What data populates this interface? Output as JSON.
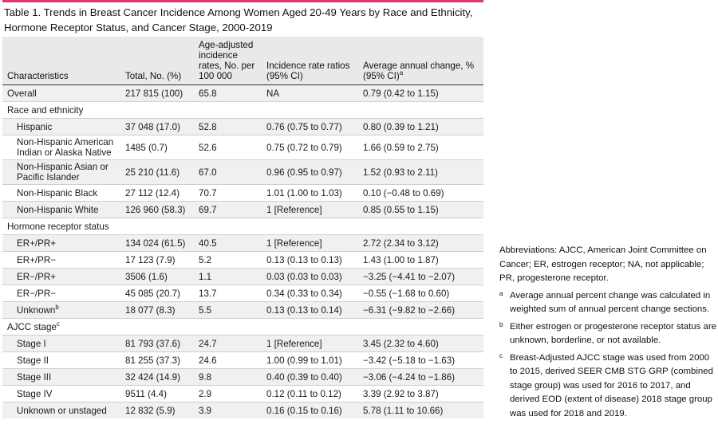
{
  "title": "Table 1. Trends in Breast Cancer Incidence Among Women Aged 20-49 Years by Race and Ethnicity, Hormone Receptor Status, and Cancer Stage, 2000-2019",
  "colors": {
    "accent": "#e8336f",
    "header_bg": "#e9e9e9",
    "stripe_bg": "#f0f0f0"
  },
  "headers": {
    "characteristics": "Characteristics",
    "total": "Total, No. (%)",
    "rates": "Age-adjusted incidence rates, No. per 100 000",
    "irr": "Incidence rate ratios (95% CI)",
    "aac": "Average annual change, % (95% CI)",
    "aac_note": "a"
  },
  "rows": [
    {
      "label": "Overall",
      "total": "217 815 (100)",
      "rate": "65.8",
      "irr": "NA",
      "aac": "0.79 (0.42 to 1.15)"
    },
    {
      "label": "Race and ethnicity"
    },
    {
      "label": "Hispanic",
      "total": "37 048 (17.0)",
      "rate": "52.8",
      "irr": "0.76 (0.75 to 0.77)",
      "aac": "0.80 (0.39 to 1.21)"
    },
    {
      "label": "Non-Hispanic American Indian or Alaska Native",
      "total": "1485 (0.7)",
      "rate": "52.6",
      "irr": "0.75 (0.72 to 0.79)",
      "aac": "1.66 (0.59 to 2.75)"
    },
    {
      "label": "Non-Hispanic Asian or Pacific Islander",
      "total": "25 210 (11.6)",
      "rate": "67.0",
      "irr": "0.96 (0.95 to 0.97)",
      "aac": "1.52 (0.93 to 2.11)"
    },
    {
      "label": "Non-Hispanic Black",
      "total": "27 112 (12.4)",
      "rate": "70.7",
      "irr": "1.01 (1.00 to 1.03)",
      "aac": "0.10 (−0.48 to 0.69)"
    },
    {
      "label": "Non-Hispanic White",
      "total": "126 960 (58.3)",
      "rate": "69.7",
      "irr": "1 [Reference]",
      "aac": "0.85 (0.55 to 1.15)"
    },
    {
      "label": "Hormone receptor status"
    },
    {
      "label": "ER+/PR+",
      "total": "134 024 (61.5)",
      "rate": "40.5",
      "irr": "1 [Reference]",
      "aac": "2.72 (2.34 to 3.12)"
    },
    {
      "label": "ER+/PR−",
      "total": "17 123 (7.9)",
      "rate": "5.2",
      "irr": "0.13 (0.13 to 0.13)",
      "aac": "1.43 (1.00 to 1.87)"
    },
    {
      "label": "ER−/PR+",
      "total": "3506 (1.6)",
      "rate": "1.1",
      "irr": "0.03 (0.03 to 0.03)",
      "aac": "−3.25 (−4.41 to −2.07)"
    },
    {
      "label": "ER−/PR−",
      "total": "45 085 (20.7)",
      "rate": "13.7",
      "irr": "0.34 (0.33 to 0.34)",
      "aac": "−0.55 (−1.68 to 0.60)"
    },
    {
      "label": "Unknown",
      "note": "b",
      "total": "18 077 (8.3)",
      "rate": "5.5",
      "irr": "0.13 (0.13 to 0.14)",
      "aac": "−6.31 (−9.82 to −2.66)"
    },
    {
      "label": "AJCC stage",
      "note": "c"
    },
    {
      "label": "Stage I",
      "total": "81 793 (37.6)",
      "rate": "24.7",
      "irr": "1 [Reference]",
      "aac": "3.45 (2.32 to 4.60)"
    },
    {
      "label": "Stage II",
      "total": "81 255 (37.3)",
      "rate": "24.6",
      "irr": "1.00 (0.99 to 1.01)",
      "aac": "−3.42 (−5.18 to −1.63)"
    },
    {
      "label": "Stage III",
      "total": "32 424 (14.9)",
      "rate": "9.8",
      "irr": "0.40 (0.39 to 0.40)",
      "aac": "−3.06 (−4.24 to −1.86)"
    },
    {
      "label": "Stage IV",
      "total": "9511 (4.4)",
      "rate": "2.9",
      "irr": "0.12 (0.11 to 0.12)",
      "aac": "3.39 (2.92 to 3.87)"
    },
    {
      "label": "Unknown or unstaged",
      "total": "12 832 (5.9)",
      "rate": "3.9",
      "irr": "0.16 (0.15 to 0.16)",
      "aac": "5.78 (1.11 to 10.66)"
    }
  ],
  "notes": {
    "abbreviations": "Abbreviations: AJCC, American Joint Committee on Cancer; ER, estrogen receptor; NA, not applicable; PR, progesterone receptor.",
    "footnotes": [
      {
        "mark": "a",
        "text": "Average annual percent change was calculated in weighted sum of annual percent change sections."
      },
      {
        "mark": "b",
        "text": "Either estrogen or progesterone receptor status are unknown, borderline, or not available."
      },
      {
        "mark": "c",
        "text": "Breast-Adjusted AJCC stage was used from 2000 to 2015, derived SEER CMB STG GRP (combined stage group) was used for 2016 to 2017, and derived EOD (extent of disease) 2018 stage group was used for 2018 and 2019."
      }
    ]
  }
}
